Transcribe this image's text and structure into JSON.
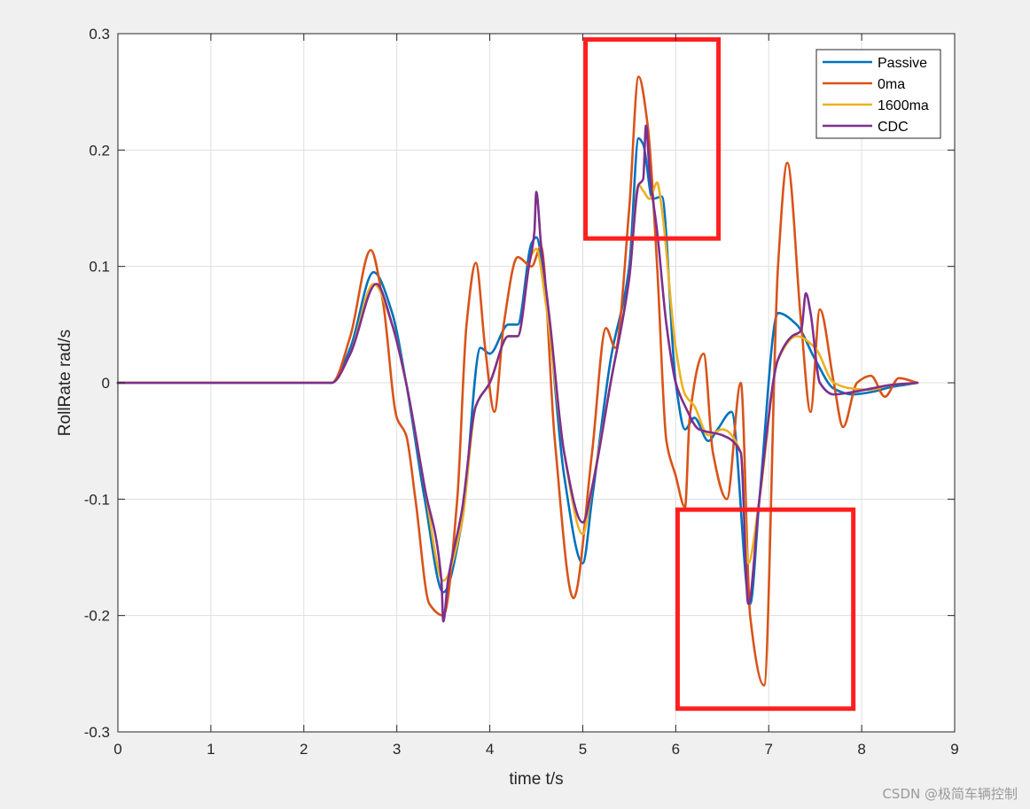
{
  "chart_data": {
    "type": "line",
    "xlabel": "time t/s",
    "ylabel": "RollRate rad/s",
    "xlim": [
      0,
      9
    ],
    "ylim": [
      -0.3,
      0.3
    ],
    "xticks": [
      "0",
      "1",
      "2",
      "3",
      "4",
      "5",
      "6",
      "7",
      "8",
      "9"
    ],
    "yticks": [
      "0.3",
      "0.2",
      "0.1",
      "0",
      "-0.1",
      "-0.2",
      "-0.3"
    ],
    "grid": true,
    "legend_position": "top-right",
    "series": [
      {
        "name": "Passive",
        "color": "#0072BD",
        "x": [
          0,
          2.3,
          2.5,
          2.75,
          2.95,
          3.1,
          3.3,
          3.5,
          3.7,
          3.9,
          4.0,
          4.2,
          4.3,
          4.45,
          4.5,
          4.6,
          4.8,
          5.0,
          5.1,
          5.3,
          5.5,
          5.6,
          5.65,
          5.75,
          5.85,
          6.0,
          6.1,
          6.2,
          6.35,
          6.45,
          6.6,
          6.8,
          6.9,
          7.1,
          7.3,
          7.5,
          7.7,
          7.9,
          8.1,
          8.3,
          8.6
        ],
        "y": [
          0,
          0,
          0.03,
          0.095,
          0.06,
          0.0,
          -0.1,
          -0.18,
          -0.12,
          0.03,
          0.025,
          0.05,
          0.05,
          0.12,
          0.125,
          0.08,
          -0.08,
          -0.155,
          -0.1,
          0.02,
          0.1,
          0.21,
          0.205,
          0.158,
          0.16,
          0.0,
          -0.04,
          -0.03,
          -0.05,
          -0.04,
          -0.025,
          -0.19,
          -0.1,
          0.06,
          0.05,
          0.02,
          -0.005,
          -0.01,
          -0.008,
          -0.004,
          0.0
        ]
      },
      {
        "name": "0ma",
        "color": "#D95319",
        "x": [
          0,
          2.3,
          2.5,
          2.72,
          2.85,
          3.0,
          3.1,
          3.2,
          3.35,
          3.5,
          3.65,
          3.75,
          3.85,
          3.95,
          4.05,
          4.15,
          4.3,
          4.45,
          4.55,
          4.7,
          4.9,
          5.1,
          5.25,
          5.35,
          5.5,
          5.6,
          5.7,
          5.8,
          5.9,
          6.0,
          6.1,
          6.15,
          6.3,
          6.4,
          6.55,
          6.7,
          6.8,
          6.95,
          7.1,
          7.2,
          7.35,
          7.45,
          7.55,
          7.7,
          7.8,
          7.95,
          8.1,
          8.25,
          8.4,
          8.6
        ],
        "y": [
          0,
          0,
          0.04,
          0.114,
          0.07,
          -0.03,
          -0.045,
          -0.1,
          -0.19,
          -0.2,
          -0.1,
          0.05,
          0.103,
          0.03,
          -0.025,
          0.05,
          0.108,
          0.1,
          0.117,
          -0.05,
          -0.185,
          -0.06,
          0.047,
          0.03,
          0.15,
          0.263,
          0.22,
          0.1,
          -0.05,
          -0.08,
          -0.107,
          -0.03,
          0.025,
          -0.06,
          -0.1,
          0.0,
          -0.2,
          -0.26,
          0.1,
          0.189,
          0.05,
          -0.025,
          0.063,
          0.0,
          -0.038,
          0.0,
          0.006,
          -0.012,
          0.004,
          0.0
        ]
      },
      {
        "name": "1600ma",
        "color": "#EDB120",
        "x": [
          0,
          2.3,
          2.5,
          2.75,
          2.95,
          3.1,
          3.3,
          3.5,
          3.7,
          3.85,
          4.0,
          4.2,
          4.3,
          4.45,
          4.5,
          4.6,
          4.8,
          5.0,
          5.1,
          5.3,
          5.5,
          5.6,
          5.65,
          5.72,
          5.8,
          5.85,
          6.0,
          6.1,
          6.2,
          6.35,
          6.5,
          6.7,
          6.78,
          6.9,
          7.1,
          7.3,
          7.5,
          7.7,
          7.9,
          8.1,
          8.3,
          8.6
        ],
        "y": [
          0,
          0,
          0.025,
          0.085,
          0.05,
          0.0,
          -0.09,
          -0.17,
          -0.12,
          -0.02,
          0.0,
          0.04,
          0.04,
          0.11,
          0.115,
          0.07,
          -0.06,
          -0.13,
          -0.09,
          0.0,
          0.09,
          0.17,
          0.165,
          0.158,
          0.172,
          0.15,
          0.03,
          -0.01,
          -0.02,
          -0.045,
          -0.04,
          -0.06,
          -0.155,
          -0.1,
          0.02,
          0.04,
          0.03,
          0.0,
          -0.005,
          -0.006,
          -0.002,
          0.0
        ]
      },
      {
        "name": "CDC",
        "color": "#7E2F8E",
        "x": [
          0,
          2.3,
          2.5,
          2.78,
          2.95,
          3.1,
          3.3,
          3.48,
          3.5,
          3.55,
          3.7,
          3.85,
          4.0,
          4.2,
          4.3,
          4.42,
          4.48,
          4.5,
          4.55,
          4.65,
          4.8,
          5.0,
          5.1,
          5.3,
          5.5,
          5.6,
          5.65,
          5.68,
          5.72,
          5.8,
          5.9,
          6.0,
          6.1,
          6.25,
          6.5,
          6.7,
          6.78,
          6.9,
          7.1,
          7.25,
          7.35,
          7.4,
          7.45,
          7.55,
          7.7,
          7.9,
          8.1,
          8.3,
          8.6
        ],
        "y": [
          0,
          0,
          0.025,
          0.085,
          0.05,
          0.0,
          -0.09,
          -0.17,
          -0.205,
          -0.17,
          -0.11,
          -0.02,
          0.0,
          0.04,
          0.04,
          0.1,
          0.13,
          0.164,
          0.12,
          0.05,
          -0.06,
          -0.12,
          -0.09,
          0.0,
          0.09,
          0.17,
          0.175,
          0.221,
          0.18,
          0.13,
          0.05,
          0.0,
          -0.02,
          -0.04,
          -0.045,
          -0.06,
          -0.19,
          -0.1,
          0.02,
          0.04,
          0.045,
          0.077,
          0.06,
          0.0,
          -0.01,
          -0.008,
          -0.005,
          -0.002,
          0.0
        ]
      }
    ]
  },
  "highlights": [
    {
      "x0": 5.03,
      "x1": 6.46,
      "y0": 0.124,
      "y1": 0.295,
      "color": "#ff1f1f"
    },
    {
      "x0": 6.02,
      "x1": 7.91,
      "y0": -0.28,
      "y1": -0.109,
      "color": "#ff1f1f"
    }
  ],
  "watermark": "CSDN @极简车辆控制"
}
